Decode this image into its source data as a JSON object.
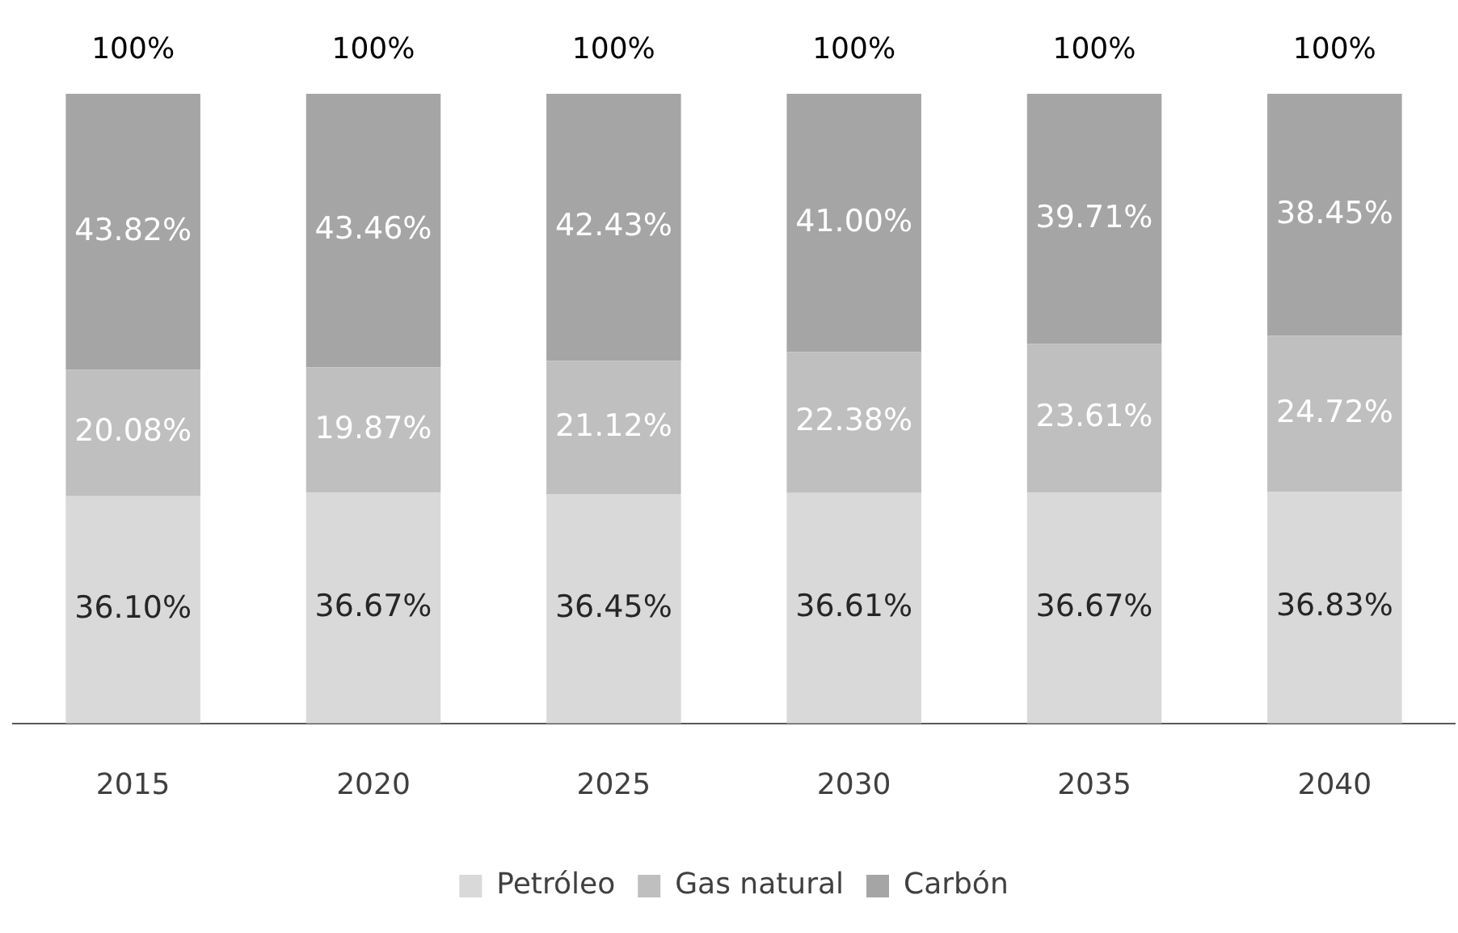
{
  "chart_data": {
    "type": "bar",
    "stacked": true,
    "categories": [
      "2015",
      "2020",
      "2025",
      "2030",
      "2035",
      "2040"
    ],
    "series": [
      {
        "name": "Petróleo",
        "color": "#d9d9d9",
        "values": [
          36.1,
          36.67,
          36.45,
          36.61,
          36.67,
          36.83
        ],
        "value_labels": [
          "36.10%",
          "36.67%",
          "36.45%",
          "36.61%",
          "36.67%",
          "36.83%"
        ]
      },
      {
        "name": "Gas natural",
        "color": "#bfbfbf",
        "values": [
          20.08,
          19.87,
          21.12,
          22.38,
          23.61,
          24.72
        ],
        "value_labels": [
          "20.08%",
          "19.87%",
          "21.12%",
          "22.38%",
          "23.61%",
          "24.72%"
        ]
      },
      {
        "name": "Carbón",
        "color": "#a5a5a5",
        "values": [
          43.82,
          43.46,
          42.43,
          41.0,
          39.71,
          38.45
        ],
        "value_labels": [
          "43.82%",
          "43.46%",
          "42.43%",
          "41.00%",
          "39.71%",
          "38.45%"
        ]
      }
    ],
    "totals": [
      "100%",
      "100%",
      "100%",
      "100%",
      "100%",
      "100%"
    ],
    "legend": "bottom",
    "grid": false,
    "tick_labels": "x"
  }
}
